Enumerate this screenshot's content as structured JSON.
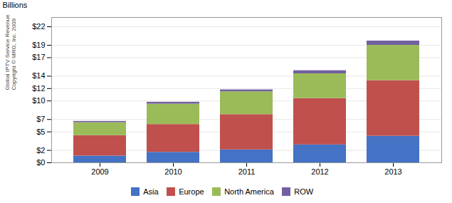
{
  "chart_data": {
    "type": "bar",
    "stacked": true,
    "categories": [
      "2009",
      "2010",
      "2011",
      "2012",
      "2013"
    ],
    "series": [
      {
        "name": "Asia",
        "color": "#4472C4",
        "values": [
          1.1,
          1.7,
          2.1,
          2.9,
          4.3
        ]
      },
      {
        "name": "Europe",
        "color": "#C0504D",
        "values": [
          3.3,
          4.5,
          5.7,
          7.5,
          9.0
        ]
      },
      {
        "name": "North America",
        "color": "#9BBB59",
        "values": [
          2.1,
          3.3,
          3.7,
          4.0,
          5.7
        ]
      },
      {
        "name": "ROW",
        "color": "#7360A0",
        "values": [
          0.2,
          0.3,
          0.3,
          0.5,
          0.7
        ]
      }
    ],
    "ylabel": "Billions",
    "annotations": [
      "Global IPTV Service Revenue\nCopyright © MRG, Inc. 2009"
    ],
    "ylim": [
      0,
      23.5
    ],
    "yticks": [
      {
        "value": 0,
        "label": "$0"
      },
      {
        "value": 2,
        "label": "$2"
      },
      {
        "value": 5,
        "label": "$5"
      },
      {
        "value": 7,
        "label": "$7"
      },
      {
        "value": 10,
        "label": "$10"
      },
      {
        "value": 12,
        "label": "$12"
      },
      {
        "value": 14,
        "label": "$14"
      },
      {
        "value": 17,
        "label": "$17"
      },
      {
        "value": 19,
        "label": "$19"
      },
      {
        "value": 22,
        "label": "$22"
      }
    ],
    "grid": true,
    "legend": "bottom"
  }
}
